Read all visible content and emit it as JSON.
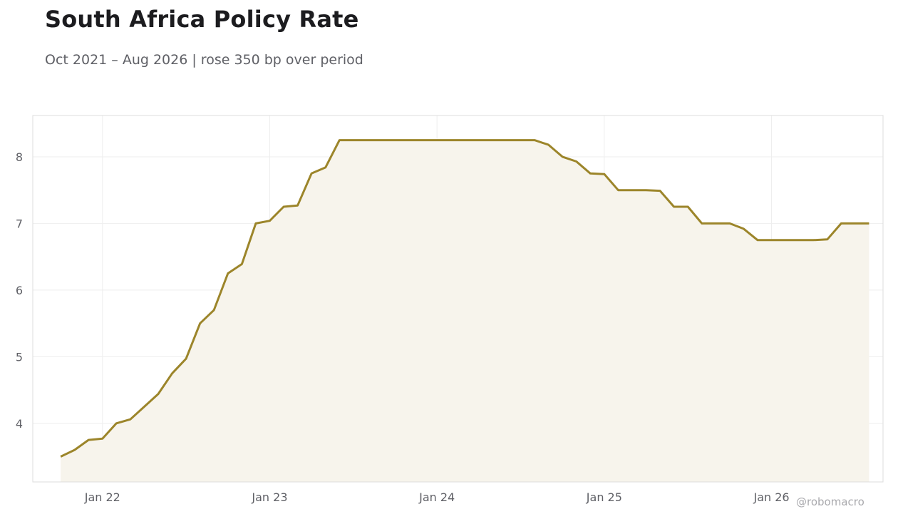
{
  "title": "South Africa Policy Rate",
  "subtitle": "Oct 2021 – Aug 2026 | rose 350 bp over period",
  "credit": "@robomacro",
  "colors": {
    "line": "#9c852a",
    "fill": "#f7f4ec",
    "grid": "#eeeeee",
    "frame": "#dddddd"
  },
  "chart_data": {
    "type": "area",
    "grid": true,
    "x_ticks": [
      {
        "label": "Jan 22",
        "x": "2022-01"
      },
      {
        "label": "Jan 23",
        "x": "2023-01"
      },
      {
        "label": "Jan 24",
        "x": "2024-01"
      },
      {
        "label": "Jan 25",
        "x": "2025-01"
      },
      {
        "label": "Jan 26",
        "x": "2026-01"
      }
    ],
    "y_ticks": [
      4,
      5,
      6,
      7,
      8
    ],
    "xlim": [
      "2021-08",
      "2026-09"
    ],
    "ylim": [
      3.12,
      8.62
    ],
    "series": [
      {
        "x": [
          "2021-10",
          "2021-11",
          "2021-12",
          "2022-01",
          "2022-02",
          "2022-03",
          "2022-04",
          "2022-05",
          "2022-06",
          "2022-07",
          "2022-08",
          "2022-09",
          "2022-10",
          "2022-11",
          "2022-12",
          "2023-01",
          "2023-02",
          "2023-03",
          "2023-04",
          "2023-05",
          "2023-06",
          "2023-07",
          "2023-08",
          "2023-09",
          "2023-10",
          "2023-11",
          "2023-12",
          "2024-01",
          "2024-02",
          "2024-03",
          "2024-04",
          "2024-05",
          "2024-06",
          "2024-07",
          "2024-08",
          "2024-09",
          "2024-10",
          "2024-11",
          "2024-12",
          "2025-01",
          "2025-02",
          "2025-03",
          "2025-04",
          "2025-05",
          "2025-06",
          "2025-07",
          "2025-08",
          "2025-09",
          "2025-10",
          "2025-11",
          "2025-12",
          "2026-01",
          "2026-02",
          "2026-03",
          "2026-04",
          "2026-05",
          "2026-06",
          "2026-07",
          "2026-08"
        ],
        "values": [
          3.5,
          3.6,
          3.75,
          3.77,
          4.0,
          4.06,
          4.25,
          4.44,
          4.75,
          4.97,
          5.5,
          5.7,
          6.25,
          6.39,
          7.0,
          7.04,
          7.25,
          7.27,
          7.75,
          7.84,
          8.25,
          8.25,
          8.25,
          8.25,
          8.25,
          8.25,
          8.25,
          8.25,
          8.25,
          8.25,
          8.25,
          8.25,
          8.25,
          8.25,
          8.25,
          8.18,
          8.0,
          7.93,
          7.75,
          7.74,
          7.5,
          7.5,
          7.5,
          7.49,
          7.25,
          7.25,
          7.0,
          7.0,
          7.0,
          6.92,
          6.75,
          6.75,
          6.75,
          6.75,
          6.75,
          6.76,
          7.0,
          7.0,
          7.0
        ]
      }
    ]
  }
}
